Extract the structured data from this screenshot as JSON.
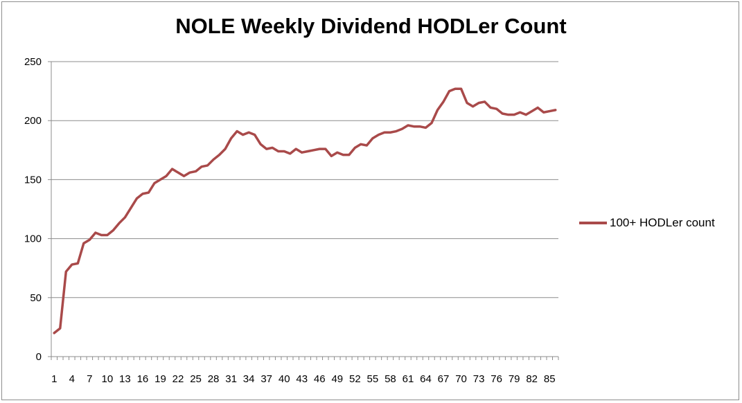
{
  "chart_data": {
    "type": "line",
    "title": "NOLE Weekly Dividend HODLer Count",
    "xlabel": "",
    "ylabel": "",
    "ylim": [
      0,
      250
    ],
    "yticks": [
      0,
      50,
      100,
      150,
      200,
      250
    ],
    "xtick_labels": [
      "1",
      "4",
      "7",
      "10",
      "13",
      "16",
      "19",
      "22",
      "25",
      "28",
      "31",
      "34",
      "37",
      "40",
      "43",
      "46",
      "49",
      "52",
      "55",
      "58",
      "61",
      "64",
      "67",
      "70",
      "73",
      "76",
      "79",
      "82",
      "85"
    ],
    "x": [
      1,
      2,
      3,
      4,
      5,
      6,
      7,
      8,
      9,
      10,
      11,
      12,
      13,
      14,
      15,
      16,
      17,
      18,
      19,
      20,
      21,
      22,
      23,
      24,
      25,
      26,
      27,
      28,
      29,
      30,
      31,
      32,
      33,
      34,
      35,
      36,
      37,
      38,
      39,
      40,
      41,
      42,
      43,
      44,
      45,
      46,
      47,
      48,
      49,
      50,
      51,
      52,
      53,
      54,
      55,
      56,
      57,
      58,
      59,
      60,
      61,
      62,
      63,
      64,
      65,
      66,
      67,
      68,
      69,
      70,
      71,
      72,
      73,
      74,
      75,
      76,
      77,
      78,
      79,
      80,
      81,
      82,
      83,
      84,
      85,
      86
    ],
    "series": [
      {
        "name": "100+ HODLer count",
        "color": "#a94a4a",
        "values": [
          20,
          24,
          72,
          78,
          79,
          96,
          99,
          105,
          103,
          103,
          107,
          113,
          118,
          126,
          134,
          138,
          139,
          147,
          150,
          153,
          159,
          156,
          153,
          156,
          157,
          161,
          162,
          167,
          171,
          176,
          185,
          191,
          188,
          190,
          188,
          180,
          176,
          177,
          174,
          174,
          172,
          176,
          173,
          174,
          175,
          176,
          176,
          170,
          173,
          171,
          171,
          177,
          180,
          179,
          185,
          188,
          190,
          190,
          191,
          193,
          196,
          195,
          195,
          194,
          198,
          209,
          216,
          225,
          227,
          227,
          215,
          212,
          215,
          216,
          211,
          210,
          206,
          205,
          205,
          207,
          205,
          208,
          211,
          207,
          208,
          209
        ]
      }
    ],
    "grid": true,
    "legend_position": "right"
  }
}
